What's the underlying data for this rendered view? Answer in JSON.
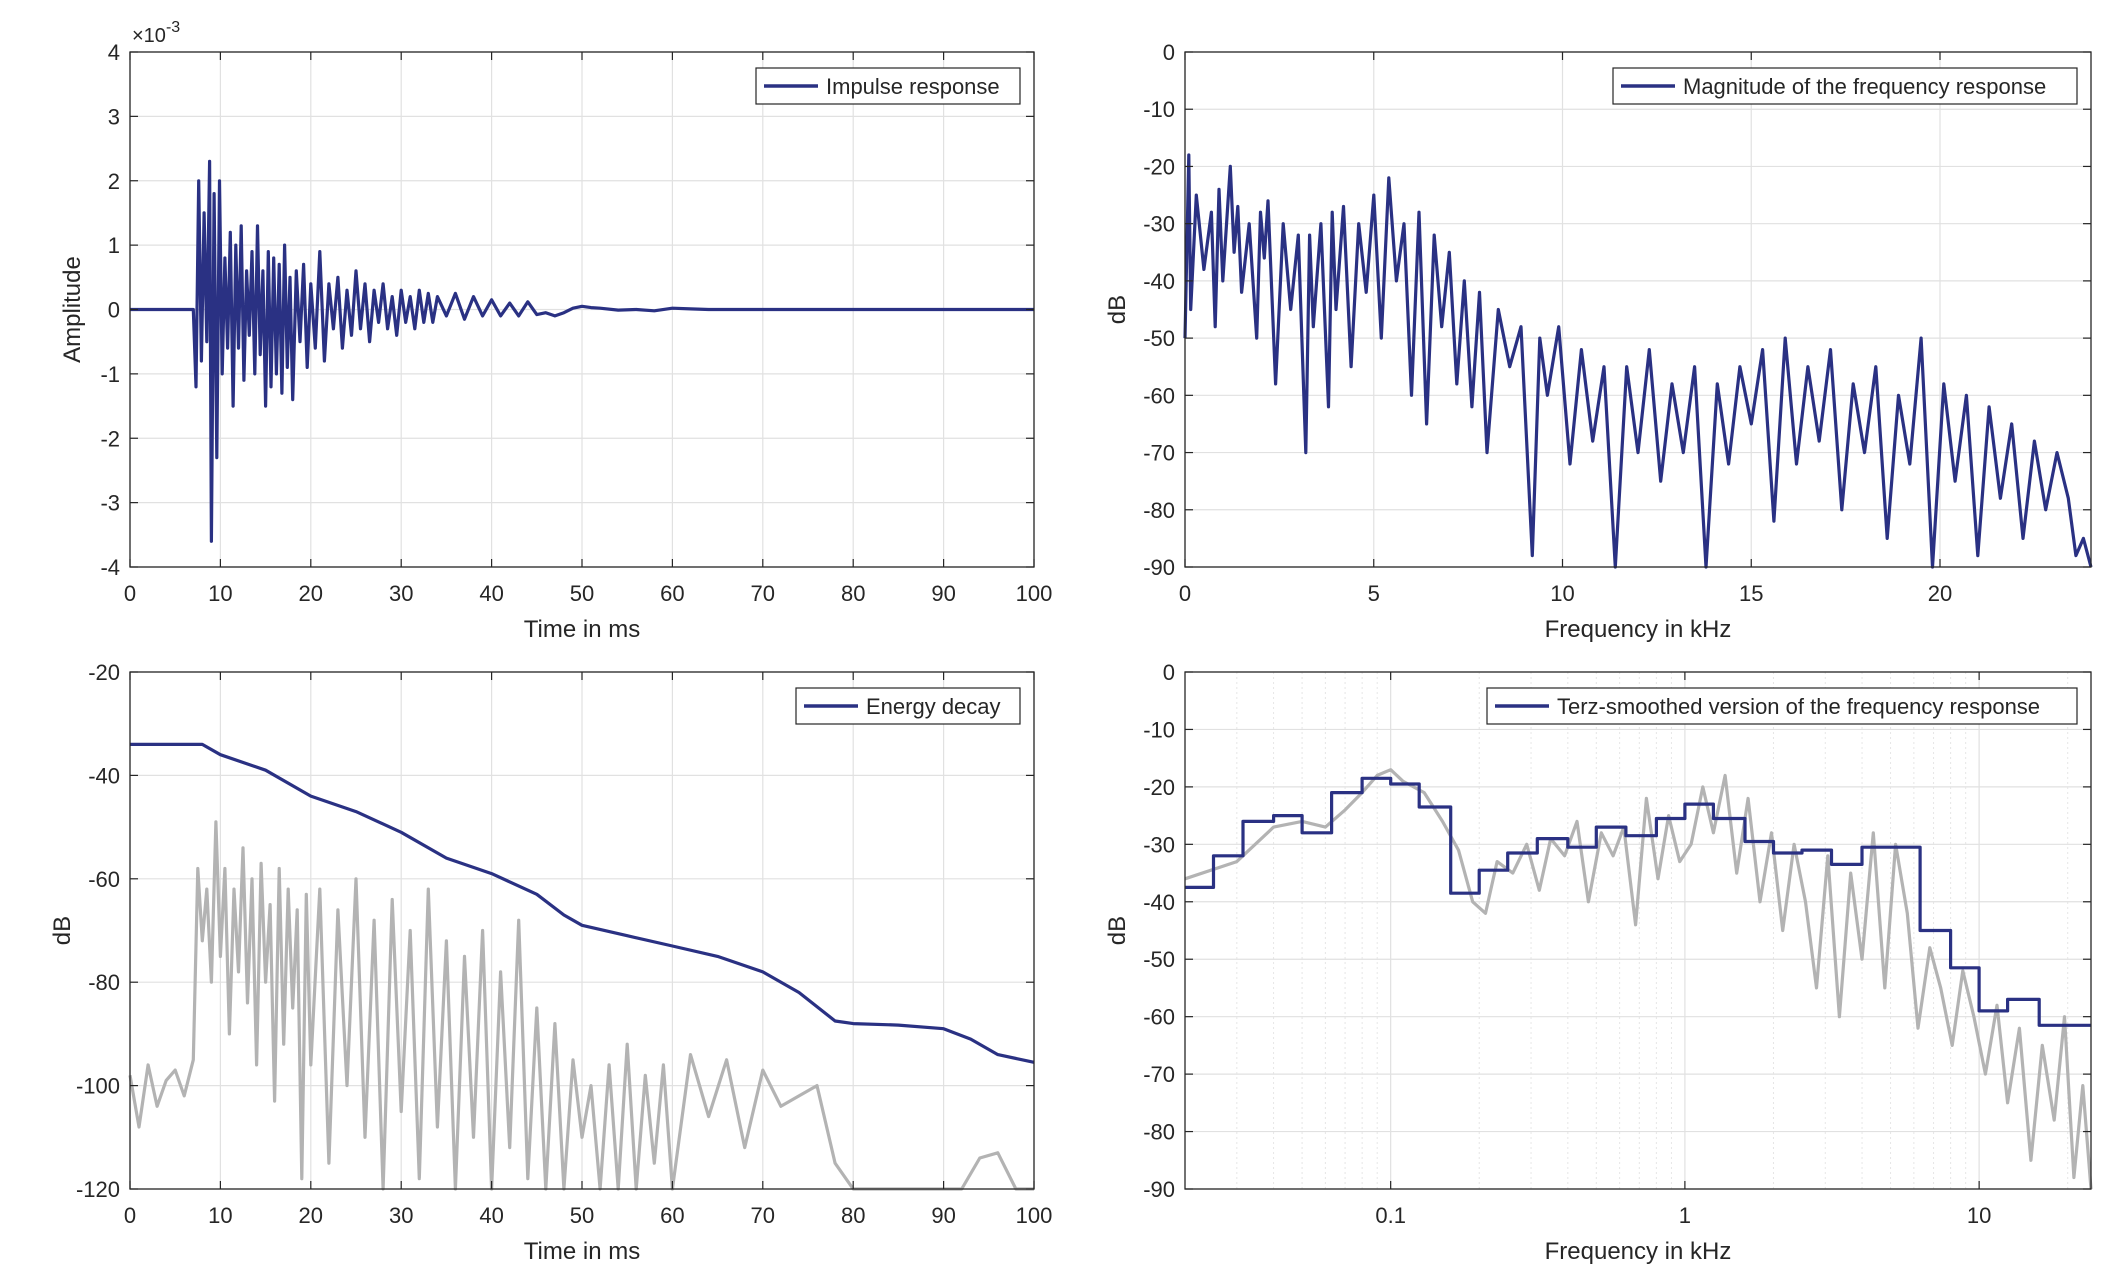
{
  "chart_data": [
    {
      "type": "line",
      "ylabel": "Amplitude",
      "xlabel": "Time in ms",
      "exponent_label": "×10",
      "exponent_power": "-3",
      "xlim": [
        0,
        100
      ],
      "ylim": [
        -4,
        4
      ],
      "xticks": [
        "0",
        "10",
        "20",
        "30",
        "40",
        "50",
        "60",
        "70",
        "80",
        "90",
        "100"
      ],
      "yticks": [
        "-4",
        "-3",
        "-2",
        "-1",
        "0",
        "1",
        "2",
        "3",
        "4"
      ],
      "grid": true,
      "legend_position": "top-right",
      "series": [
        {
          "name": "Impulse response",
          "color": "#2a3183",
          "x": [
            0,
            7.0,
            7.3,
            7.6,
            7.9,
            8.2,
            8.5,
            8.8,
            9.0,
            9.3,
            9.6,
            9.9,
            10.2,
            10.5,
            10.8,
            11.1,
            11.4,
            11.7,
            12.0,
            12.3,
            12.6,
            12.9,
            13.2,
            13.5,
            13.8,
            14.1,
            14.4,
            14.7,
            15.0,
            15.3,
            15.6,
            15.9,
            16.2,
            16.5,
            16.8,
            17.1,
            17.4,
            17.7,
            18.0,
            18.4,
            18.8,
            19.2,
            19.6,
            20.0,
            20.5,
            21.0,
            21.5,
            22.0,
            22.5,
            23.0,
            23.5,
            24.0,
            24.5,
            25.0,
            25.5,
            26.0,
            26.5,
            27.0,
            27.5,
            28.0,
            28.5,
            29.0,
            29.5,
            30.0,
            30.5,
            31.0,
            31.5,
            32.0,
            32.5,
            33.0,
            33.5,
            34.0,
            35.0,
            36.0,
            37.0,
            38.0,
            39.0,
            40.0,
            41.0,
            42.0,
            43.0,
            44.0,
            45.0,
            46.0,
            47.0,
            48.0,
            49.0,
            50.0,
            51.0,
            52.0,
            54.0,
            56.0,
            58.0,
            60.0,
            62.0,
            64.0,
            70.0,
            80.0,
            90.0,
            100.0
          ],
          "y": [
            0,
            0,
            -1.2,
            2.0,
            -0.8,
            1.5,
            -0.5,
            2.3,
            -3.6,
            1.8,
            -2.3,
            2.0,
            -1.0,
            0.8,
            -0.6,
            1.2,
            -1.5,
            1.0,
            -0.6,
            1.3,
            -1.1,
            0.6,
            -0.4,
            0.9,
            -1.0,
            1.3,
            -0.7,
            0.6,
            -1.5,
            0.9,
            -1.2,
            0.8,
            -1.0,
            0.7,
            -1.3,
            1.0,
            -0.9,
            0.5,
            -1.4,
            0.6,
            -0.5,
            0.7,
            -0.9,
            0.4,
            -0.6,
            0.9,
            -0.8,
            0.4,
            -0.3,
            0.5,
            -0.6,
            0.3,
            -0.4,
            0.6,
            -0.3,
            0.4,
            -0.5,
            0.3,
            -0.2,
            0.4,
            -0.3,
            0.2,
            -0.4,
            0.3,
            -0.2,
            0.2,
            -0.3,
            0.3,
            -0.2,
            0.25,
            -0.2,
            0.2,
            -0.1,
            0.25,
            -0.15,
            0.2,
            -0.1,
            0.15,
            -0.1,
            0.1,
            -0.1,
            0.12,
            -0.08,
            -0.05,
            -0.1,
            -0.05,
            0.02,
            0.05,
            0.03,
            0.02,
            -0.01,
            0.0,
            -0.02,
            0.02,
            0.01,
            0.0,
            0.0,
            0.0,
            0.0,
            0.0
          ]
        }
      ]
    },
    {
      "type": "line",
      "ylabel": "dB",
      "xlabel": "Frequency in kHz",
      "xlim": [
        0,
        24
      ],
      "ylim": [
        -90,
        0
      ],
      "xticks": [
        "0",
        "5",
        "10",
        "15",
        "20"
      ],
      "yticks": [
        "0",
        "-10",
        "-20",
        "-30",
        "-40",
        "-50",
        "-60",
        "-70",
        "-80",
        "-90"
      ],
      "grid": true,
      "legend_position": "top-right",
      "series": [
        {
          "name": "Magnitude of the frequency response",
          "color": "#2a3183",
          "x": [
            0.0,
            0.1,
            0.15,
            0.3,
            0.5,
            0.7,
            0.8,
            0.9,
            1.0,
            1.2,
            1.3,
            1.4,
            1.5,
            1.7,
            1.9,
            2.0,
            2.1,
            2.2,
            2.4,
            2.6,
            2.8,
            3.0,
            3.2,
            3.3,
            3.4,
            3.6,
            3.8,
            3.9,
            4.0,
            4.2,
            4.4,
            4.6,
            4.8,
            5.0,
            5.2,
            5.4,
            5.6,
            5.8,
            6.0,
            6.2,
            6.4,
            6.6,
            6.8,
            7.0,
            7.2,
            7.4,
            7.6,
            7.8,
            8.0,
            8.3,
            8.6,
            8.9,
            9.2,
            9.4,
            9.6,
            9.9,
            10.2,
            10.5,
            10.8,
            11.1,
            11.4,
            11.7,
            12.0,
            12.3,
            12.6,
            12.9,
            13.2,
            13.5,
            13.8,
            14.1,
            14.4,
            14.7,
            15.0,
            15.3,
            15.6,
            15.9,
            16.2,
            16.5,
            16.8,
            17.1,
            17.4,
            17.7,
            18.0,
            18.3,
            18.6,
            18.9,
            19.2,
            19.5,
            19.8,
            20.1,
            20.4,
            20.7,
            21.0,
            21.3,
            21.6,
            21.9,
            22.2,
            22.5,
            22.8,
            23.1,
            23.4,
            23.6,
            23.8,
            24.0
          ],
          "y": [
            -50,
            -18,
            -45,
            -25,
            -38,
            -28,
            -48,
            -24,
            -40,
            -20,
            -35,
            -27,
            -42,
            -30,
            -50,
            -28,
            -36,
            -26,
            -58,
            -30,
            -45,
            -32,
            -70,
            -32,
            -48,
            -30,
            -62,
            -28,
            -45,
            -27,
            -55,
            -30,
            -42,
            -25,
            -50,
            -22,
            -40,
            -30,
            -60,
            -28,
            -65,
            -32,
            -48,
            -35,
            -58,
            -40,
            -62,
            -42,
            -70,
            -45,
            -55,
            -48,
            -88,
            -50,
            -60,
            -48,
            -72,
            -52,
            -68,
            -55,
            -90,
            -55,
            -70,
            -52,
            -75,
            -58,
            -70,
            -55,
            -90,
            -58,
            -72,
            -55,
            -65,
            -52,
            -82,
            -50,
            -72,
            -55,
            -68,
            -52,
            -80,
            -58,
            -70,
            -55,
            -85,
            -60,
            -72,
            -50,
            -90,
            -58,
            -75,
            -60,
            -88,
            -62,
            -78,
            -65,
            -85,
            -68,
            -80,
            -70,
            -78,
            -88,
            -85,
            -90
          ]
        }
      ]
    },
    {
      "type": "line",
      "ylabel": "dB",
      "xlabel": "Time in ms",
      "xlim": [
        0,
        100
      ],
      "ylim": [
        -120,
        -20
      ],
      "xticks": [
        "0",
        "10",
        "20",
        "30",
        "40",
        "50",
        "60",
        "70",
        "80",
        "90",
        "100"
      ],
      "yticks": [
        "-20",
        "-40",
        "-60",
        "-80",
        "-100",
        "-120"
      ],
      "grid": true,
      "legend_position": "top-right",
      "series": [
        {
          "name": "Energy decay",
          "color": "#2a3183",
          "x": [
            0,
            5,
            8,
            10,
            15,
            20,
            25,
            30,
            35,
            40,
            45,
            48,
            50,
            55,
            60,
            65,
            70,
            74,
            78,
            80,
            85,
            90,
            93,
            96,
            100
          ],
          "y": [
            -34,
            -34,
            -34,
            -36,
            -39,
            -44,
            -47,
            -51,
            -56,
            -59,
            -63,
            -67,
            -69,
            -71,
            -73,
            -75,
            -78,
            -82,
            -87.5,
            -88,
            -88.3,
            -89,
            -91,
            -94,
            -95.5
          ]
        },
        {
          "color": "#b3b3b3",
          "x": [
            0,
            1,
            2,
            3,
            4,
            5,
            6,
            7,
            7.5,
            8,
            8.5,
            9,
            9.5,
            10,
            10.5,
            11,
            11.5,
            12,
            12.5,
            13,
            13.5,
            14,
            14.5,
            15,
            15.5,
            16,
            16.5,
            17,
            17.5,
            18,
            18.5,
            19,
            19.5,
            20,
            21,
            22,
            23,
            24,
            25,
            26,
            27,
            28,
            29,
            30,
            31,
            32,
            33,
            34,
            35,
            36,
            37,
            38,
            39,
            40,
            41,
            42,
            43,
            44,
            45,
            46,
            47,
            48,
            49,
            50,
            51,
            52,
            53,
            54,
            55,
            56,
            57,
            58,
            59,
            60,
            62,
            64,
            66,
            68,
            70,
            72,
            74,
            76,
            78,
            80,
            82,
            84,
            86,
            88,
            90,
            92,
            94,
            96,
            98,
            100
          ],
          "y": [
            -98,
            -108,
            -96,
            -104,
            -99,
            -97,
            -102,
            -95,
            -58,
            -72,
            -62,
            -80,
            -49,
            -75,
            -58,
            -90,
            -62,
            -78,
            -54,
            -84,
            -60,
            -96,
            -57,
            -80,
            -65,
            -103,
            -58,
            -92,
            -62,
            -85,
            -66,
            -118,
            -63,
            -96,
            -62,
            -115,
            -66,
            -100,
            -60,
            -110,
            -68,
            -120,
            -64,
            -105,
            -70,
            -118,
            -62,
            -108,
            -72,
            -120,
            -75,
            -110,
            -70,
            -120,
            -78,
            -112,
            -68,
            -118,
            -85,
            -120,
            -88,
            -120,
            -95,
            -110,
            -100,
            -120,
            -96,
            -120,
            -92,
            -120,
            -98,
            -115,
            -96,
            -120,
            -94,
            -106,
            -95,
            -112,
            -97,
            -104,
            -102,
            -100,
            -115,
            -120,
            -120,
            -120,
            -120,
            -120,
            -120,
            -120,
            -114,
            -113,
            -120,
            -120
          ]
        }
      ]
    },
    {
      "type": "line",
      "ylabel": "dB",
      "xlabel": "Frequency in kHz",
      "xscale": "log",
      "xlim": [
        0.02,
        24
      ],
      "ylim": [
        -90,
        0
      ],
      "xticks": [
        "0.1",
        "1",
        "10"
      ],
      "yticks": [
        "0",
        "-10",
        "-20",
        "-30",
        "-40",
        "-50",
        "-60",
        "-70",
        "-80",
        "-90"
      ],
      "grid": true,
      "legend_position": "top-right",
      "series": [
        {
          "name": "Terz-smoothed version of the frequency response",
          "color": "#2a3183",
          "x": [
            0.02,
            0.025,
            0.025,
            0.0315,
            0.0315,
            0.04,
            0.04,
            0.05,
            0.05,
            0.063,
            0.063,
            0.08,
            0.08,
            0.1,
            0.1,
            0.125,
            0.125,
            0.16,
            0.16,
            0.2,
            0.2,
            0.25,
            0.25,
            0.315,
            0.315,
            0.4,
            0.4,
            0.5,
            0.5,
            0.63,
            0.63,
            0.8,
            0.8,
            1.0,
            1.0,
            1.25,
            1.25,
            1.6,
            1.6,
            2.0,
            2.0,
            2.5,
            2.5,
            3.15,
            3.15,
            4.0,
            4.0,
            5.0,
            5.0,
            6.3,
            6.3,
            8.0,
            8.0,
            10.0,
            10.0,
            12.5,
            12.5,
            16.0,
            16.0,
            20.0,
            20.0,
            24.0
          ],
          "y": [
            -37.5,
            -37.5,
            -32,
            -32,
            -26,
            -26,
            -25,
            -25,
            -28,
            -28,
            -21,
            -21,
            -18.5,
            -18.5,
            -19.5,
            -19.5,
            -23.5,
            -23.5,
            -38.5,
            -38.5,
            -34.5,
            -34.5,
            -31.5,
            -31.5,
            -29,
            -29,
            -30.5,
            -30.5,
            -27,
            -27,
            -28.5,
            -28.5,
            -25.5,
            -25.5,
            -23,
            -23,
            -25.5,
            -25.5,
            -29.5,
            -29.5,
            -31.5,
            -31.5,
            -31,
            -31,
            -33.5,
            -33.5,
            -30.5,
            -30.5,
            -30.5,
            -30.5,
            -45,
            -45,
            -51.5,
            -51.5,
            -59,
            -59,
            -57,
            -57,
            -61.5,
            -61.5,
            -61.5,
            -61.5
          ]
        },
        {
          "color": "#b3b3b3",
          "x": [
            0.02,
            0.03,
            0.04,
            0.05,
            0.06,
            0.07,
            0.08,
            0.09,
            0.1,
            0.11,
            0.13,
            0.15,
            0.17,
            0.19,
            0.21,
            0.23,
            0.26,
            0.29,
            0.32,
            0.35,
            0.39,
            0.43,
            0.47,
            0.52,
            0.57,
            0.62,
            0.68,
            0.74,
            0.81,
            0.88,
            0.96,
            1.05,
            1.15,
            1.25,
            1.37,
            1.5,
            1.64,
            1.8,
            1.97,
            2.15,
            2.35,
            2.57,
            2.8,
            3.06,
            3.35,
            3.66,
            4.0,
            4.37,
            4.78,
            5.2,
            5.7,
            6.2,
            6.8,
            7.4,
            8.1,
            8.8,
            9.6,
            10.5,
            11.5,
            12.5,
            13.7,
            15.0,
            16.4,
            18.0,
            19.5,
            21.0,
            22.5,
            24.0
          ],
          "y": [
            -36,
            -33,
            -27,
            -26,
            -27,
            -24,
            -21,
            -18,
            -17,
            -19,
            -21,
            -26,
            -31,
            -40,
            -42,
            -33,
            -35,
            -30,
            -38,
            -29,
            -32,
            -26,
            -40,
            -28,
            -32,
            -27,
            -44,
            -22,
            -36,
            -25,
            -33,
            -30,
            -20,
            -28,
            -18,
            -35,
            -22,
            -40,
            -28,
            -45,
            -30,
            -40,
            -55,
            -32,
            -60,
            -35,
            -50,
            -28,
            -55,
            -30,
            -42,
            -62,
            -48,
            -55,
            -65,
            -52,
            -60,
            -70,
            -58,
            -75,
            -62,
            -85,
            -65,
            -78,
            -60,
            -88,
            -72,
            -90
          ]
        }
      ]
    }
  ]
}
